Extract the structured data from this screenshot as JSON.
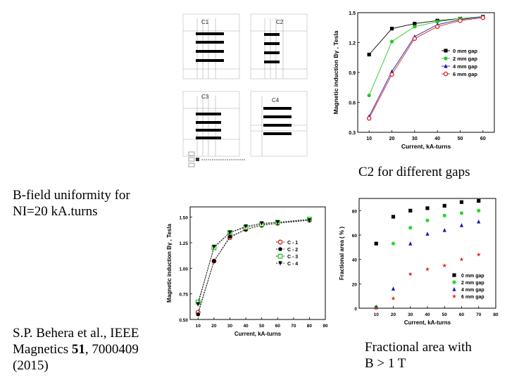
{
  "captions": {
    "top_right": "C2 for different gaps",
    "uniformity": "B-field uniformity for\nNI=20 kA.turns",
    "citation_line1": "S.P. Behera et al., IEEE",
    "citation_line2_pre": "Magnetics ",
    "citation_line2_vol": "51",
    "citation_line2_post": ", 7000409",
    "citation_line3": "(2015)",
    "fractional": "Fractional area with\nB > 1 T"
  },
  "configs": {
    "panels": [
      {
        "label": "C1"
      },
      {
        "label": "C2"
      },
      {
        "label": "C3"
      },
      {
        "label": "C4"
      }
    ]
  },
  "chart_data": [
    {
      "id": "gaps",
      "type": "line",
      "title": "",
      "xlabel": "Current, kA-turns",
      "ylabel": "Magnetic induction Bγ , Tesla",
      "xlim": [
        5,
        65
      ],
      "ylim": [
        0.3,
        1.5
      ],
      "xticks": [
        10,
        20,
        30,
        40,
        50,
        60
      ],
      "yticks": [
        0.3,
        0.6,
        0.9,
        1.2,
        1.5
      ],
      "ytick_labels": [
        "0.3",
        "0.6",
        "0.9",
        "1.2",
        "1.5"
      ],
      "legend_position": "center-right",
      "x": [
        10,
        20,
        30,
        40,
        50,
        60
      ],
      "series": [
        {
          "name": "0 mm gap",
          "color": "#000000",
          "marker": "square",
          "values": [
            1.08,
            1.34,
            1.39,
            1.42,
            1.44,
            1.46
          ]
        },
        {
          "name": "2 mm gap",
          "color": "#22c922",
          "marker": "circle",
          "values": [
            0.67,
            1.21,
            1.36,
            1.41,
            1.44,
            1.46
          ]
        },
        {
          "name": "4 mm gap",
          "color": "#1a1aa8",
          "marker": "triangle",
          "values": [
            0.46,
            0.91,
            1.26,
            1.38,
            1.43,
            1.46
          ]
        },
        {
          "name": "6 mm gap",
          "color": "#d62020",
          "marker": "open-circle",
          "values": [
            0.44,
            0.88,
            1.24,
            1.36,
            1.42,
            1.45
          ]
        }
      ]
    },
    {
      "id": "configs",
      "type": "line",
      "title": "",
      "xlabel": "Current, kA-turns",
      "ylabel": "Magnetic induction Bγ , Tesla",
      "xlim": [
        5,
        90
      ],
      "ylim": [
        0.5,
        1.6
      ],
      "xticks": [
        10,
        20,
        30,
        40,
        50,
        60,
        70,
        80,
        90
      ],
      "yticks": [
        0.5,
        0.75,
        1.0,
        1.25,
        1.5
      ],
      "ytick_labels": [
        "0.50",
        "0.75",
        "1.00",
        "1.25",
        "1.50"
      ],
      "legend_position": "center-right",
      "x": [
        10,
        20,
        30,
        40,
        50,
        60,
        80
      ],
      "series": [
        {
          "name": "C - 1",
          "color": "#d62020",
          "marker": "open-circle",
          "values": [
            0.57,
            1.07,
            1.3,
            1.38,
            1.42,
            1.44,
            1.47
          ]
        },
        {
          "name": "C - 2",
          "color": "#000000",
          "marker": "circle",
          "values": [
            0.55,
            1.07,
            1.31,
            1.38,
            1.42,
            1.44,
            1.47
          ]
        },
        {
          "name": "C - 3",
          "color": "#22c922",
          "marker": "open-square",
          "values": [
            0.67,
            1.2,
            1.35,
            1.4,
            1.43,
            1.45,
            1.48
          ]
        },
        {
          "name": "C - 4",
          "color": "#000000",
          "marker": "down-triangle",
          "values": [
            0.65,
            1.21,
            1.35,
            1.41,
            1.44,
            1.45,
            1.47
          ]
        }
      ]
    },
    {
      "id": "fraction",
      "type": "scatter",
      "title": "",
      "xlabel": "Current, kA-turns",
      "ylabel": "Fractional area ( % )",
      "xlim": [
        0,
        80
      ],
      "ylim": [
        0,
        90
      ],
      "xticks": [
        10,
        20,
        30,
        40,
        50,
        60,
        70,
        80
      ],
      "yticks": [
        0,
        20,
        40,
        60,
        80
      ],
      "ytick_labels": [
        "0",
        "20",
        "40",
        "60",
        "80"
      ],
      "legend_position": "bottom-right",
      "x": [
        10,
        20,
        30,
        40,
        50,
        60,
        70
      ],
      "series": [
        {
          "name": "0 mm gap",
          "color": "#000000",
          "marker": "square",
          "values": [
            53,
            75,
            80,
            82,
            84,
            87,
            88
          ]
        },
        {
          "name": "2 mm gap",
          "color": "#22dd22",
          "marker": "circle",
          "values": [
            1,
            53,
            66,
            72,
            76,
            78,
            80
          ]
        },
        {
          "name": "4 mm gap",
          "color": "#1a1aa8",
          "marker": "triangle",
          "values": [
            1,
            16,
            53,
            61,
            64,
            68,
            71
          ]
        },
        {
          "name": "6 mm gap",
          "color": "#d62020",
          "marker": "star",
          "values": [
            0,
            8,
            28,
            32,
            35,
            40,
            44
          ]
        }
      ]
    }
  ]
}
